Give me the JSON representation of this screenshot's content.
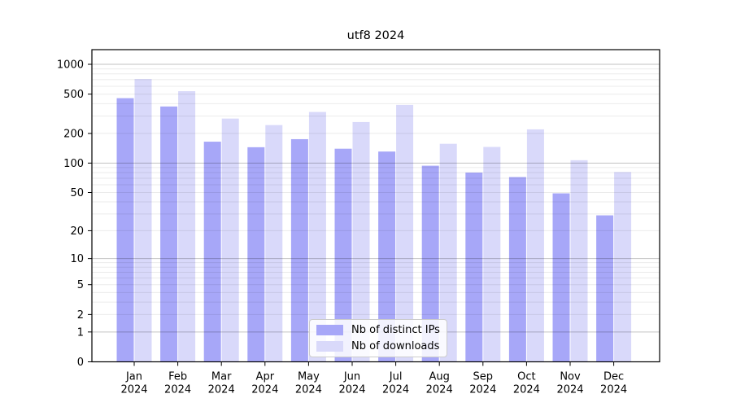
{
  "chart_data": {
    "type": "bar",
    "title": "utf8 2024",
    "categories": [
      "Jan",
      "Feb",
      "Mar",
      "Apr",
      "May",
      "Jun",
      "Jul",
      "Aug",
      "Sep",
      "Oct",
      "Nov",
      "Dec"
    ],
    "year_label": "2024",
    "series": [
      {
        "name": "Nb of distinct IPs",
        "color": "#a7a7f8",
        "values": [
          455,
          375,
          165,
          145,
          175,
          140,
          131,
          94,
          80,
          72,
          49,
          29
        ]
      },
      {
        "name": "Nb of downloads",
        "color": "#d9d9fa",
        "values": [
          710,
          535,
          283,
          243,
          330,
          261,
          389,
          157,
          146,
          220,
          107,
          81
        ]
      }
    ],
    "yticks": [
      1000,
      500,
      200,
      100,
      50,
      20,
      10,
      5,
      2,
      1,
      0
    ],
    "ylim": [
      0,
      1380
    ],
    "yscale": "log10(value+1)",
    "grid": "horizontal, dark lines at 1/10/100/1000, light lines at 2-9 multiples",
    "legend_position": "lower center inside plot"
  }
}
